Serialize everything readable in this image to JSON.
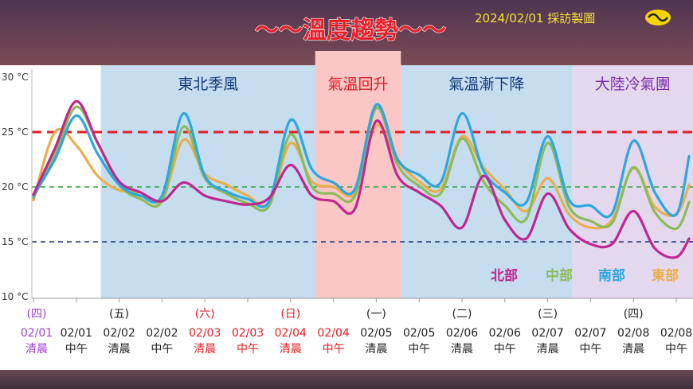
{
  "header": {
    "title": "～～溫度趨勢～～",
    "credit": "2024/02/01 採訪製圖",
    "logo_text": "TVBS"
  },
  "colors": {
    "bg_band_top": "#5b3a52",
    "bg_band_bottom": "#8a4a4a",
    "title_red": "#e8202a",
    "credit_yellow": "#f5e23a",
    "blue_region": "#c6ddf0",
    "red_region": "#fbc6c6",
    "purple_region": "#e4d8ef",
    "north": "#c0278f",
    "central": "#8dbb5a",
    "south": "#2ea6de",
    "east": "#e9ae4e",
    "ref_red": "#e31e24",
    "ref_green": "#2ea043",
    "ref_navy": "#1f3a78"
  },
  "chart_data": {
    "type": "line",
    "title": "～～溫度趨勢～～",
    "ylim": [
      10,
      30
    ],
    "yticks": [
      "10 °C",
      "15 °C",
      "20 °C",
      "25 °C",
      "30 °C"
    ],
    "ytick_values": [
      10,
      15,
      20,
      25,
      30
    ],
    "x_labels": [
      {
        "weekday": "(四)",
        "date": "02/01",
        "time": "清晨",
        "color": "purple"
      },
      {
        "weekday": "",
        "date": "02/01",
        "time": "中午",
        "color": "black"
      },
      {
        "weekday": "(五)",
        "date": "02/02",
        "time": "清晨",
        "color": "black"
      },
      {
        "weekday": "",
        "date": "02/02",
        "time": "中午",
        "color": "black"
      },
      {
        "weekday": "(六)",
        "date": "02/03",
        "time": "清晨",
        "color": "red"
      },
      {
        "weekday": "",
        "date": "02/03",
        "time": "中午",
        "color": "red"
      },
      {
        "weekday": "(日)",
        "date": "02/04",
        "time": "清晨",
        "color": "red"
      },
      {
        "weekday": "",
        "date": "02/04",
        "time": "中午",
        "color": "red"
      },
      {
        "weekday": "(一)",
        "date": "02/05",
        "time": "清晨",
        "color": "black"
      },
      {
        "weekday": "",
        "date": "02/05",
        "time": "中午",
        "color": "black"
      },
      {
        "weekday": "(二)",
        "date": "02/06",
        "time": "清晨",
        "color": "black"
      },
      {
        "weekday": "",
        "date": "02/06",
        "time": "中午",
        "color": "black"
      },
      {
        "weekday": "(三)",
        "date": "02/07",
        "time": "清晨",
        "color": "black"
      },
      {
        "weekday": "",
        "date": "02/07",
        "time": "中午",
        "color": "black"
      },
      {
        "weekday": "(四)",
        "date": "02/08",
        "time": "清晨",
        "color": "black"
      },
      {
        "weekday": "",
        "date": "02/08",
        "time": "中午",
        "color": "black"
      }
    ],
    "regions": [
      {
        "label": "東北季風",
        "from": 1.5,
        "to": 6.5,
        "color": "blue"
      },
      {
        "label": "氣溫回升",
        "from": 6.5,
        "to": 8.5,
        "color": "red"
      },
      {
        "label": "氣溫漸下降",
        "from": 8.5,
        "to": 12.5,
        "color": "blue"
      },
      {
        "label": "大陸冷氣團",
        "from": 12.5,
        "to": 15.5,
        "color": "purple"
      }
    ],
    "reference_lines": [
      {
        "value": 25,
        "color": "red"
      },
      {
        "value": 20,
        "color": "green"
      },
      {
        "value": 15,
        "color": "navy"
      }
    ],
    "series": [
      {
        "name": "北部",
        "key": "north",
        "x": [
          0,
          0.5,
          1,
          1.5,
          2,
          2.5,
          3,
          3.5,
          4,
          4.5,
          5,
          5.5,
          6,
          6.5,
          7,
          7.5,
          8,
          8.5,
          9,
          9.5,
          10,
          10.5,
          11,
          11.5,
          12,
          12.5,
          13,
          13.5,
          14,
          14.5,
          15
        ],
        "y": [
          19.3,
          23.5,
          27.8,
          24.0,
          20.5,
          19.5,
          18.7,
          20.4,
          19.2,
          18.7,
          18.4,
          19.0,
          22.0,
          19.2,
          18.7,
          18.0,
          26.0,
          21.0,
          19.5,
          18.3,
          16.3,
          21.0,
          17.0,
          15.3,
          19.4,
          16.2,
          14.8,
          14.8,
          17.8,
          14.4,
          13.6
        ]
      },
      {
        "name": "中部",
        "key": "central",
        "x": [
          0,
          0.5,
          1,
          1.5,
          2,
          2.5,
          3,
          3.5,
          4,
          4.5,
          5,
          5.5,
          6,
          6.5,
          7,
          7.5,
          8,
          8.5,
          9,
          9.5,
          10,
          10.5,
          11,
          11.5,
          12,
          12.5,
          13,
          13.5,
          14,
          14.5,
          15
        ],
        "y": [
          19.0,
          23.0,
          27.3,
          24.0,
          20.2,
          18.9,
          18.7,
          25.5,
          20.8,
          19.4,
          18.5,
          18.3,
          24.8,
          20.0,
          19.4,
          19.2,
          27.2,
          22.0,
          20.1,
          19.4,
          24.4,
          20.5,
          18.3,
          17.1,
          24.0,
          18.2,
          16.9,
          16.7,
          21.8,
          17.7,
          16.2
        ]
      },
      {
        "name": "南部",
        "key": "south",
        "x": [
          0,
          0.5,
          1,
          1.5,
          2,
          2.5,
          3,
          3.5,
          4,
          4.5,
          5,
          5.5,
          6,
          6.5,
          7,
          7.5,
          8,
          8.5,
          9,
          9.5,
          10,
          10.5,
          11,
          11.5,
          12,
          12.5,
          13,
          13.5,
          14,
          14.5,
          15
        ],
        "y": [
          19.2,
          22.5,
          26.5,
          23.0,
          20.2,
          19.2,
          19.2,
          26.7,
          21.0,
          19.6,
          18.9,
          18.7,
          26.1,
          21.6,
          20.4,
          19.8,
          27.5,
          22.5,
          21.1,
          20.4,
          26.7,
          21.5,
          19.5,
          18.6,
          24.6,
          18.8,
          18.3,
          17.6,
          24.2,
          19.5,
          17.5
        ]
      },
      {
        "name": "東部",
        "key": "east",
        "x": [
          0,
          0.5,
          1,
          1.5,
          2,
          2.5,
          3,
          3.5,
          4,
          4.5,
          5,
          5.5,
          6,
          6.5,
          7,
          7.5,
          8,
          8.5,
          9,
          9.5,
          10,
          10.5,
          11,
          11.5,
          12,
          12.5,
          13,
          13.5,
          14,
          14.5,
          15
        ],
        "y": [
          18.8,
          25.0,
          23.8,
          21.0,
          19.7,
          19.5,
          18.8,
          24.3,
          21.2,
          20.2,
          19.2,
          18.5,
          24.0,
          20.5,
          20.0,
          19.5,
          25.6,
          22.4,
          20.5,
          19.8,
          24.6,
          21.8,
          19.8,
          17.8,
          20.8,
          17.5,
          16.3,
          17.0,
          21.7,
          18.2,
          17.5
        ]
      }
    ],
    "series_extra": {
      "south_last": {
        "x": 15.3,
        "y": 22.8
      },
      "central_last": {
        "x": 15.3,
        "y": 18.6
      },
      "east_last": {
        "x": 15.3,
        "y": 20.2
      },
      "north_last": {
        "x": 15.3,
        "y": 15.3
      }
    }
  }
}
